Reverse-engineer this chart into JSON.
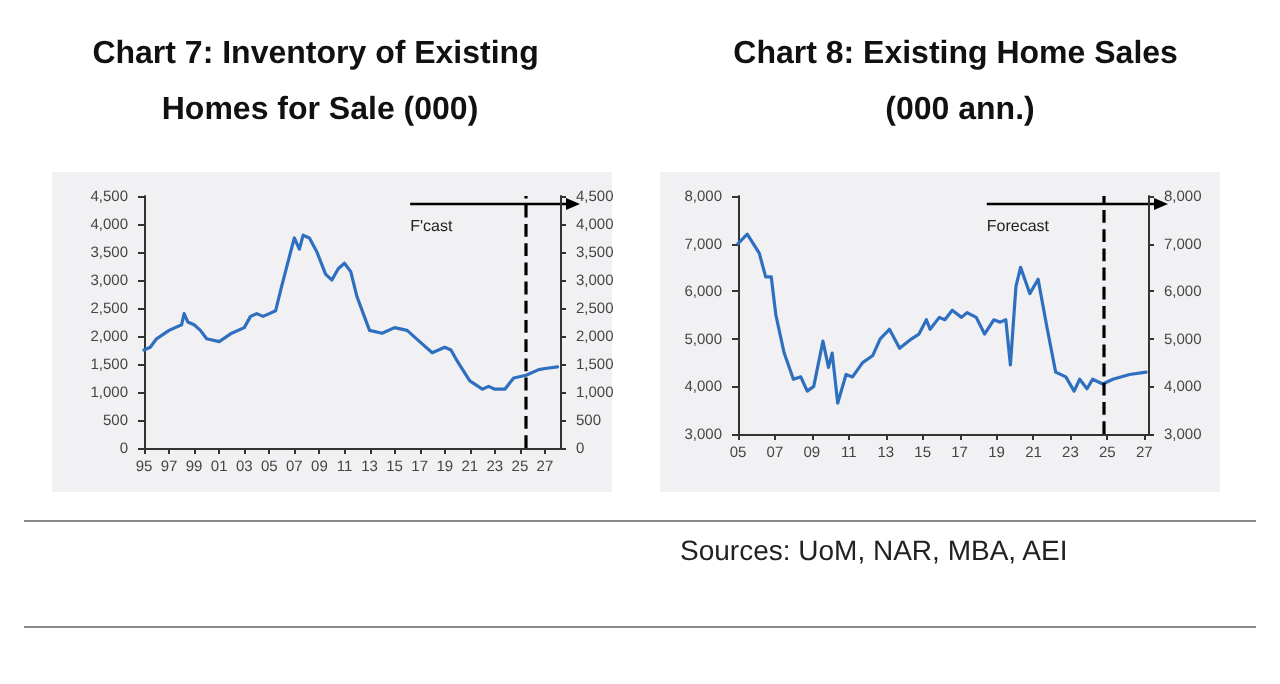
{
  "chart_data": [
    {
      "type": "line",
      "title": "Chart 7: Inventory of Existing Homes for Sale (000)",
      "x": [
        1995,
        1995.5,
        1996,
        1997,
        1998,
        1998.2,
        1998.5,
        1999,
        1999.5,
        2000,
        2001,
        2002,
        2003,
        2003.5,
        2004,
        2004.5,
        2005,
        2005.5,
        2006,
        2006.7,
        2007,
        2007.4,
        2007.7,
        2008.2,
        2008.8,
        2009.5,
        2010,
        2010.5,
        2011,
        2011.5,
        2012,
        2012.5,
        2013,
        2014,
        2015,
        2016,
        2017,
        2018,
        2019,
        2019.5,
        2020,
        2021,
        2022,
        2022.5,
        2023,
        2023.8,
        2024.5,
        2025.5,
        2026.5,
        2027,
        2028
      ],
      "series": [
        {
          "color": "#2f6fc0",
          "values": [
            1750,
            1800,
            1950,
            2100,
            2200,
            2400,
            2250,
            2200,
            2100,
            1950,
            1900,
            2050,
            2150,
            2350,
            2400,
            2350,
            2400,
            2450,
            2900,
            3500,
            3750,
            3550,
            3800,
            3750,
            3500,
            3100,
            3000,
            3200,
            3300,
            3150,
            2700,
            2400,
            2100,
            2050,
            2150,
            2100,
            1900,
            1700,
            1800,
            1750,
            1550,
            1200,
            1050,
            1100,
            1050,
            1050,
            1250,
            1300,
            1400,
            1420,
            1450
          ]
        }
      ],
      "xlim": [
        1995,
        2028.2
      ],
      "xticks": [
        {
          "value": 1995,
          "label": "95"
        },
        {
          "value": 1997,
          "label": "97"
        },
        {
          "value": 1999,
          "label": "99"
        },
        {
          "value": 2001,
          "label": "01"
        },
        {
          "value": 2003,
          "label": "03"
        },
        {
          "value": 2005,
          "label": "05"
        },
        {
          "value": 2007,
          "label": "07"
        },
        {
          "value": 2009,
          "label": "09"
        },
        {
          "value": 2011,
          "label": "11"
        },
        {
          "value": 2013,
          "label": "13"
        },
        {
          "value": 2015,
          "label": "15"
        },
        {
          "value": 2017,
          "label": "17"
        },
        {
          "value": 2019,
          "label": "19"
        },
        {
          "value": 2021,
          "label": "21"
        },
        {
          "value": 2023,
          "label": "23"
        },
        {
          "value": 2025,
          "label": "25"
        },
        {
          "value": 2027,
          "label": "27"
        }
      ],
      "ylim": [
        0,
        4500
      ],
      "yticks": [
        {
          "value": 0,
          "label": "0"
        },
        {
          "value": 500,
          "label": "500"
        },
        {
          "value": 1000,
          "label": "1,000"
        },
        {
          "value": 1500,
          "label": "1,500"
        },
        {
          "value": 2000,
          "label": "2,000"
        },
        {
          "value": 2500,
          "label": "2,500"
        },
        {
          "value": 3000,
          "label": "3,000"
        },
        {
          "value": 3500,
          "label": "3,500"
        },
        {
          "value": 4000,
          "label": "4,000"
        },
        {
          "value": 4500,
          "label": "4,500"
        }
      ],
      "y2lim": [
        0,
        4500
      ],
      "y2ticks": [
        {
          "value": 0,
          "label": "0"
        },
        {
          "value": 500,
          "label": "500"
        },
        {
          "value": 1000,
          "label": "1,000"
        },
        {
          "value": 1500,
          "label": "1,500"
        },
        {
          "value": 2000,
          "label": "2,000"
        },
        {
          "value": 2500,
          "label": "2,500"
        },
        {
          "value": 3000,
          "label": "3,000"
        },
        {
          "value": 3500,
          "label": "3,500"
        },
        {
          "value": 4000,
          "label": "4,000"
        },
        {
          "value": 4500,
          "label": "4,500"
        }
      ],
      "ref_lines": [
        {
          "axis": "x",
          "value": 2025.5,
          "label": "F'cast",
          "line_style": "dashed",
          "color": "#000000"
        }
      ],
      "grid": false,
      "marker": "none",
      "line_style": "solid"
    },
    {
      "type": "line",
      "title": "Chart 8: Existing Home Sales (000 ann.)",
      "x": [
        2005,
        2005.5,
        2006.15,
        2006.5,
        2006.8,
        2007.05,
        2007.5,
        2008,
        2008.4,
        2008.75,
        2009.1,
        2009.6,
        2009.9,
        2010.1,
        2010.4,
        2010.85,
        2011.2,
        2011.75,
        2012.3,
        2012.7,
        2013.2,
        2013.75,
        2014.4,
        2014.8,
        2015.2,
        2015.4,
        2015.9,
        2016.2,
        2016.6,
        2017.1,
        2017.4,
        2017.9,
        2018.35,
        2018.85,
        2019.2,
        2019.5,
        2019.75,
        2020.05,
        2020.3,
        2020.8,
        2021.25,
        2021.7,
        2022.2,
        2022.75,
        2023.2,
        2023.5,
        2023.9,
        2024.2,
        2024.75,
        2025.3,
        2026.2,
        2027.1
      ],
      "series": [
        {
          "color": "#2f6fc0",
          "values": [
            7000,
            7200,
            6800,
            6300,
            6300,
            5500,
            4700,
            4150,
            4200,
            3900,
            4000,
            4950,
            4400,
            4700,
            3650,
            4250,
            4200,
            4500,
            4650,
            5000,
            5200,
            4800,
            5000,
            5100,
            5400,
            5200,
            5450,
            5400,
            5600,
            5450,
            5550,
            5450,
            5100,
            5400,
            5350,
            5400,
            4450,
            6100,
            6500,
            5950,
            6250,
            5300,
            4300,
            4200,
            3900,
            4150,
            3950,
            4150,
            4050,
            4150,
            4250,
            4300
          ]
        }
      ],
      "xlim": [
        2005,
        2027.2
      ],
      "xticks": [
        {
          "value": 2005,
          "label": "05"
        },
        {
          "value": 2007,
          "label": "07"
        },
        {
          "value": 2009,
          "label": "09"
        },
        {
          "value": 2011,
          "label": "11"
        },
        {
          "value": 2013,
          "label": "13"
        },
        {
          "value": 2015,
          "label": "15"
        },
        {
          "value": 2017,
          "label": "17"
        },
        {
          "value": 2019,
          "label": "19"
        },
        {
          "value": 2021,
          "label": "21"
        },
        {
          "value": 2023,
          "label": "23"
        },
        {
          "value": 2025,
          "label": "25"
        },
        {
          "value": 2027,
          "label": "27"
        }
      ],
      "ylim": [
        3000,
        8000
      ],
      "yticks": [
        {
          "value": 3000,
          "label": "3,000"
        },
        {
          "value": 4000,
          "label": "4,000"
        },
        {
          "value": 5000,
          "label": "5,000"
        },
        {
          "value": 6000,
          "label": "6,000"
        },
        {
          "value": 7000,
          "label": "7,000"
        },
        {
          "value": 8000,
          "label": "8,000"
        }
      ],
      "y2lim": [
        3000,
        8000
      ],
      "y2ticks": [
        {
          "value": 3000,
          "label": "3,000"
        },
        {
          "value": 4000,
          "label": "4,000"
        },
        {
          "value": 5000,
          "label": "5,000"
        },
        {
          "value": 6000,
          "label": "6,000"
        },
        {
          "value": 7000,
          "label": "7,000"
        },
        {
          "value": 8000,
          "label": "8,000"
        }
      ],
      "ref_lines": [
        {
          "axis": "x",
          "value": 2024.75,
          "label": "Forecast",
          "line_style": "dashed",
          "color": "#000000"
        }
      ],
      "annotations": [
        "Sources: UoM, NAR, MBA, AEI"
      ],
      "grid": false,
      "marker": "none",
      "line_style": "solid"
    }
  ]
}
